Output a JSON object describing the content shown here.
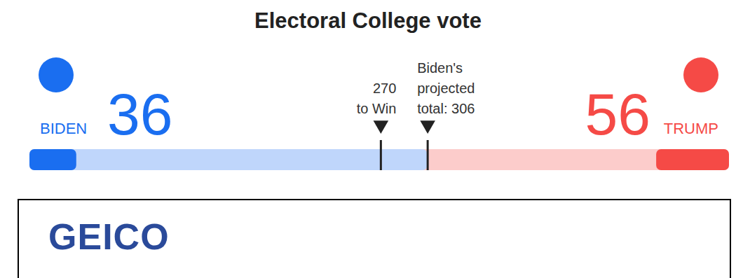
{
  "chart_data": {
    "type": "bar",
    "title": "Electoral College vote",
    "orientation": "horizontal",
    "tick_labels": false,
    "xlim": [
      0,
      538
    ],
    "series": [
      {
        "name": "BIDEN",
        "color": "#1a6ef0",
        "values": [
          36
        ],
        "projected": 306
      },
      {
        "name": "TRUMP",
        "color": "#f54a46",
        "values": [
          56
        ]
      }
    ],
    "markers": [
      {
        "value": 270,
        "label": "270\nto Win"
      },
      {
        "value": 306,
        "label": "Biden's\nprojected\ntotal: 306"
      }
    ]
  },
  "advertisement": {
    "logo": "GEICO"
  }
}
